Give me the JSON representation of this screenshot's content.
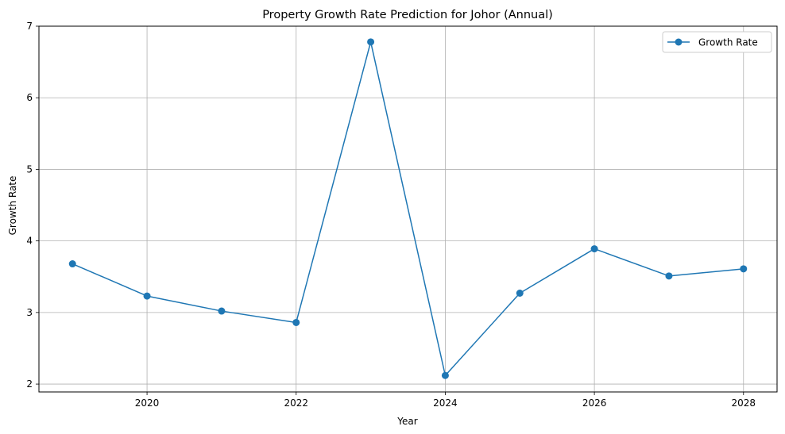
{
  "chart_data": {
    "type": "line",
    "title": "Property Growth Rate Prediction for Johor (Annual)",
    "xlabel": "Year",
    "ylabel": "Growth Rate",
    "x": [
      2019,
      2020,
      2021,
      2022,
      2023,
      2024,
      2025,
      2026,
      2027,
      2028
    ],
    "series": [
      {
        "name": "Growth Rate",
        "color": "#1f77b4",
        "marker": "circle",
        "values": [
          3.68,
          3.23,
          3.02,
          2.86,
          6.78,
          2.12,
          3.27,
          3.89,
          3.51,
          3.61
        ]
      }
    ],
    "xlim": [
      2018.55,
      2028.45
    ],
    "ylim": [
      1.89,
      7.0
    ],
    "xticks": [
      2020,
      2022,
      2024,
      2026,
      2028
    ],
    "yticks": [
      2,
      3,
      4,
      5,
      6,
      7
    ],
    "grid": true,
    "legend_position": "top-right"
  }
}
